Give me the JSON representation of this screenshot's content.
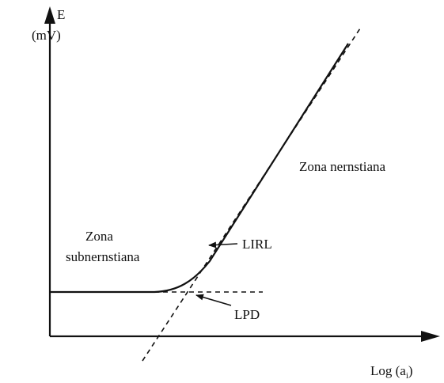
{
  "axes": {
    "y_label": "E",
    "y_unit": "(mV)",
    "x_label": "Log (a",
    "x_subscript": "i",
    "x_close": ")"
  },
  "regions": [
    {
      "label": "Zona nernstiana"
    },
    {
      "label_lines": [
        "Zona",
        "subnernstiana"
      ]
    }
  ],
  "annotations": [
    {
      "label": "LIRL"
    },
    {
      "label": "LPD"
    }
  ]
}
